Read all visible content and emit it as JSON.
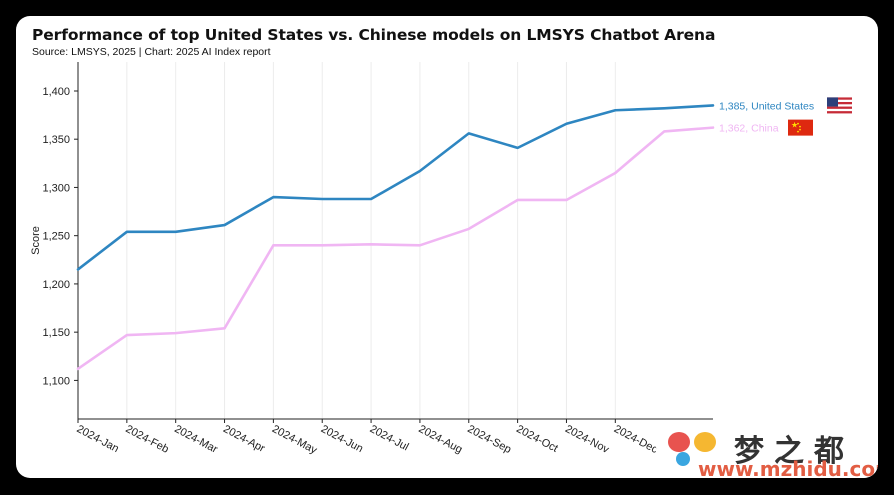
{
  "header": {
    "title": "Performance of top United States vs. Chinese models on LMSYS Chatbot Arena",
    "subtitle": "Source: LMSYS, 2025 | Chart: 2025 AI Index report"
  },
  "chart_data": {
    "type": "line",
    "title": "Performance of top United States vs. Chinese models on LMSYS Chatbot Arena",
    "xlabel": "",
    "ylabel": "Score",
    "ylim": [
      1060,
      1430
    ],
    "yticks": [
      1100,
      1150,
      1200,
      1250,
      1300,
      1350,
      1400
    ],
    "ytick_labels": [
      "1,100",
      "1,150",
      "1,200",
      "1,250",
      "1,300",
      "1,350",
      "1,400"
    ],
    "categories": [
      "2024-Jan",
      "2024-Feb",
      "2024-Mar",
      "2024-Apr",
      "2024-May",
      "2024-Jun",
      "2024-Jul",
      "2024-Aug",
      "2024-Sep",
      "2024-Oct",
      "2024-Nov",
      "2024-Dec",
      "",
      ""
    ],
    "x_tick_labels": [
      "2024-Jan",
      "2024-Feb",
      "2024-Mar",
      "2024-Apr",
      "2024-May",
      "2024-Jun",
      "2024-Jul",
      "2024-Aug",
      "2024-Sep",
      "2024-Oct",
      "2024-Nov",
      "2024-Dec"
    ],
    "grid": "vertical",
    "series": [
      {
        "name": "United States",
        "label": "1,385, United States",
        "color": "#2e86c1",
        "values": [
          1215,
          1254,
          1254,
          1261,
          1290,
          1288,
          1288,
          1317,
          1356,
          1341,
          1366,
          1380,
          1382,
          1385
        ]
      },
      {
        "name": "China",
        "label": "1,362, China",
        "color": "#f0b6f3",
        "values": [
          1112,
          1147,
          1149,
          1154,
          1240,
          1240,
          1241,
          1240,
          1257,
          1287,
          1287,
          1315,
          1358,
          1362
        ]
      }
    ],
    "flags": [
      "us-flag-icon",
      "china-flag-icon"
    ]
  },
  "watermark": {
    "text": "梦之都",
    "url": "www.mzhidu.com"
  }
}
